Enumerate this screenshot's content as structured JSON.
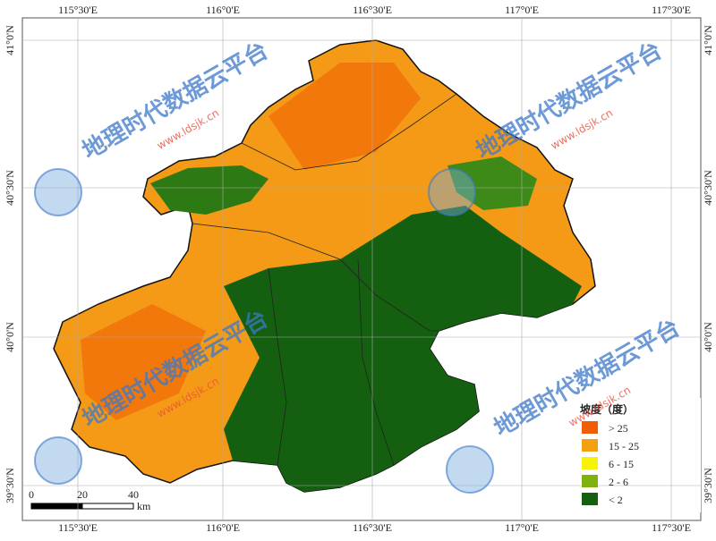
{
  "map": {
    "longitude_labels": [
      "115°30'E",
      "116°0'E",
      "116°30'E",
      "117°0'E",
      "117°30'E"
    ],
    "latitude_labels": [
      "41°0'N",
      "40°30'N",
      "40°0'N",
      "39°30'N"
    ],
    "legend": {
      "title": "坡度（度）",
      "items": [
        {
          "label": "> 25",
          "color": "#f25c05"
        },
        {
          "label": "15 - 25",
          "color": "#f5a011"
        },
        {
          "label": "6 - 15",
          "color": "#f7f20a"
        },
        {
          "label": "2 - 6",
          "color": "#7fb20f"
        },
        {
          "label": "< 2",
          "color": "#156010"
        }
      ]
    },
    "scale_bar": {
      "ticks": [
        "0",
        "20",
        "40"
      ],
      "unit": "km"
    },
    "watermark": {
      "title": "地理时代数据云平台",
      "url": "www.ldsjk.cn"
    }
  }
}
